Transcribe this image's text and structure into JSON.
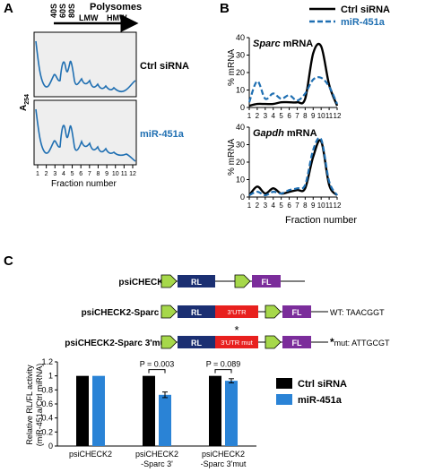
{
  "panel_a": {
    "letter": "A",
    "ribosome_labels": [
      "40S",
      "60S",
      "80S"
    ],
    "polysomes_label": "Polysomes",
    "lmw_label": "LMW",
    "hmw_label": "HMW",
    "ylabel_main": "A",
    "ylabel_sub": "254",
    "top_label": "Ctrl siRNA",
    "bottom_label": "miR-451a",
    "xlabel": "Fraction number",
    "ticks": [
      "1",
      "2",
      "3",
      "4",
      "5",
      "6",
      "7",
      "8",
      "9",
      "10",
      "11",
      "12"
    ],
    "line_color": "#1f6fb2",
    "panel_fill": "#eeeeee"
  },
  "panel_b": {
    "letter": "B",
    "legend": [
      "Ctrl siRNA",
      "miR-451a"
    ],
    "xlabel": "Fraction number",
    "ylabel": "% mRNA",
    "ctrl_color": "#000000",
    "mir_color": "#1f6fb2"
  },
  "panel_c": {
    "letter": "C",
    "constructs": [
      {
        "name": "psiCHECK2",
        "rl": "RL",
        "fl": "FL"
      },
      {
        "name": "psiCHECK2-Sparc 3'",
        "rl": "RL",
        "utr": "3'UTR",
        "fl": "FL",
        "note": "WT: TAACGGT"
      },
      {
        "name": "psiCHECK2-Sparc 3'mut",
        "rl": "RL",
        "utr": "3'UTR mut",
        "fl": "FL",
        "star": "*",
        "note_star": "*",
        "note": "mut: ATTGCGT"
      }
    ],
    "colors": {
      "promoter": "#a6d84a",
      "rl": "#1b2f72",
      "utr": "#e8201e",
      "fl": "#7b2d9b"
    }
  },
  "chart_data": [
    {
      "type": "line",
      "title": "Sparc mRNA",
      "title_italic": "Sparc",
      "title_rest": " mRNA",
      "ylabel": "% mRNA",
      "xlabel": "Fraction number",
      "ylim": [
        0,
        40
      ],
      "yticks": [
        0,
        10,
        20,
        30,
        40
      ],
      "x": [
        1,
        2,
        3,
        4,
        5,
        6,
        7,
        8,
        9,
        10,
        11,
        12
      ],
      "series": [
        {
          "name": "Ctrl siRNA",
          "values": [
            1,
            2,
            2,
            2,
            3,
            3,
            3,
            5,
            31,
            35,
            13,
            1
          ]
        },
        {
          "name": "miR-451a",
          "values": [
            3,
            15,
            5,
            8,
            5,
            7,
            4,
            8,
            16,
            17,
            12,
            2
          ]
        }
      ]
    },
    {
      "type": "line",
      "title": "Gapdh mRNA",
      "title_italic": "Gapdh",
      "title_rest": " mRNA",
      "ylabel": "% mRNA",
      "xlabel": "Fraction number",
      "ylim": [
        0,
        40
      ],
      "yticks": [
        0,
        10,
        20,
        30,
        40
      ],
      "x": [
        1,
        2,
        3,
        4,
        5,
        6,
        7,
        8,
        9,
        10,
        11,
        12
      ],
      "series": [
        {
          "name": "Ctrl siRNA",
          "values": [
            1,
            6,
            2,
            5,
            2,
            3,
            4,
            5,
            23,
            32,
            7,
            1
          ]
        },
        {
          "name": "miR-451a",
          "values": [
            1,
            3,
            1,
            3,
            2,
            4,
            5,
            7,
            27,
            33,
            9,
            1
          ]
        }
      ]
    },
    {
      "type": "bar",
      "ylabel": "Relative RL/FL activity",
      "ylabel2": "(miR-451a/Ctrl miRNA)",
      "ylim": [
        0,
        1.2
      ],
      "yticks": [
        "0",
        "0.2",
        "0.4",
        "0.6",
        "0.8",
        "1",
        "1.2"
      ],
      "categories": [
        "psiCHECK2",
        "psiCHECK2\n-Sparc 3'",
        "psiCHECK2\n-Sparc 3'mut"
      ],
      "category_lines": [
        [
          "psiCHECK2"
        ],
        [
          "psiCHECK2",
          "-Sparc 3'"
        ],
        [
          "psiCHECK2",
          "-Sparc 3'mut"
        ]
      ],
      "series": [
        {
          "name": "Ctrl siRNA",
          "values": [
            1,
            1,
            1
          ],
          "errors": [
            0,
            0,
            0
          ],
          "color": "#000000"
        },
        {
          "name": "miR-451a",
          "values": [
            1,
            0.73,
            0.93
          ],
          "errors": [
            0,
            0.04,
            0.03
          ],
          "color": "#2a83d6"
        }
      ],
      "annotations": [
        "P = 0.003",
        "P = 0.089"
      ],
      "legend": [
        "Ctrl siRNA",
        "miR-451a"
      ]
    }
  ]
}
